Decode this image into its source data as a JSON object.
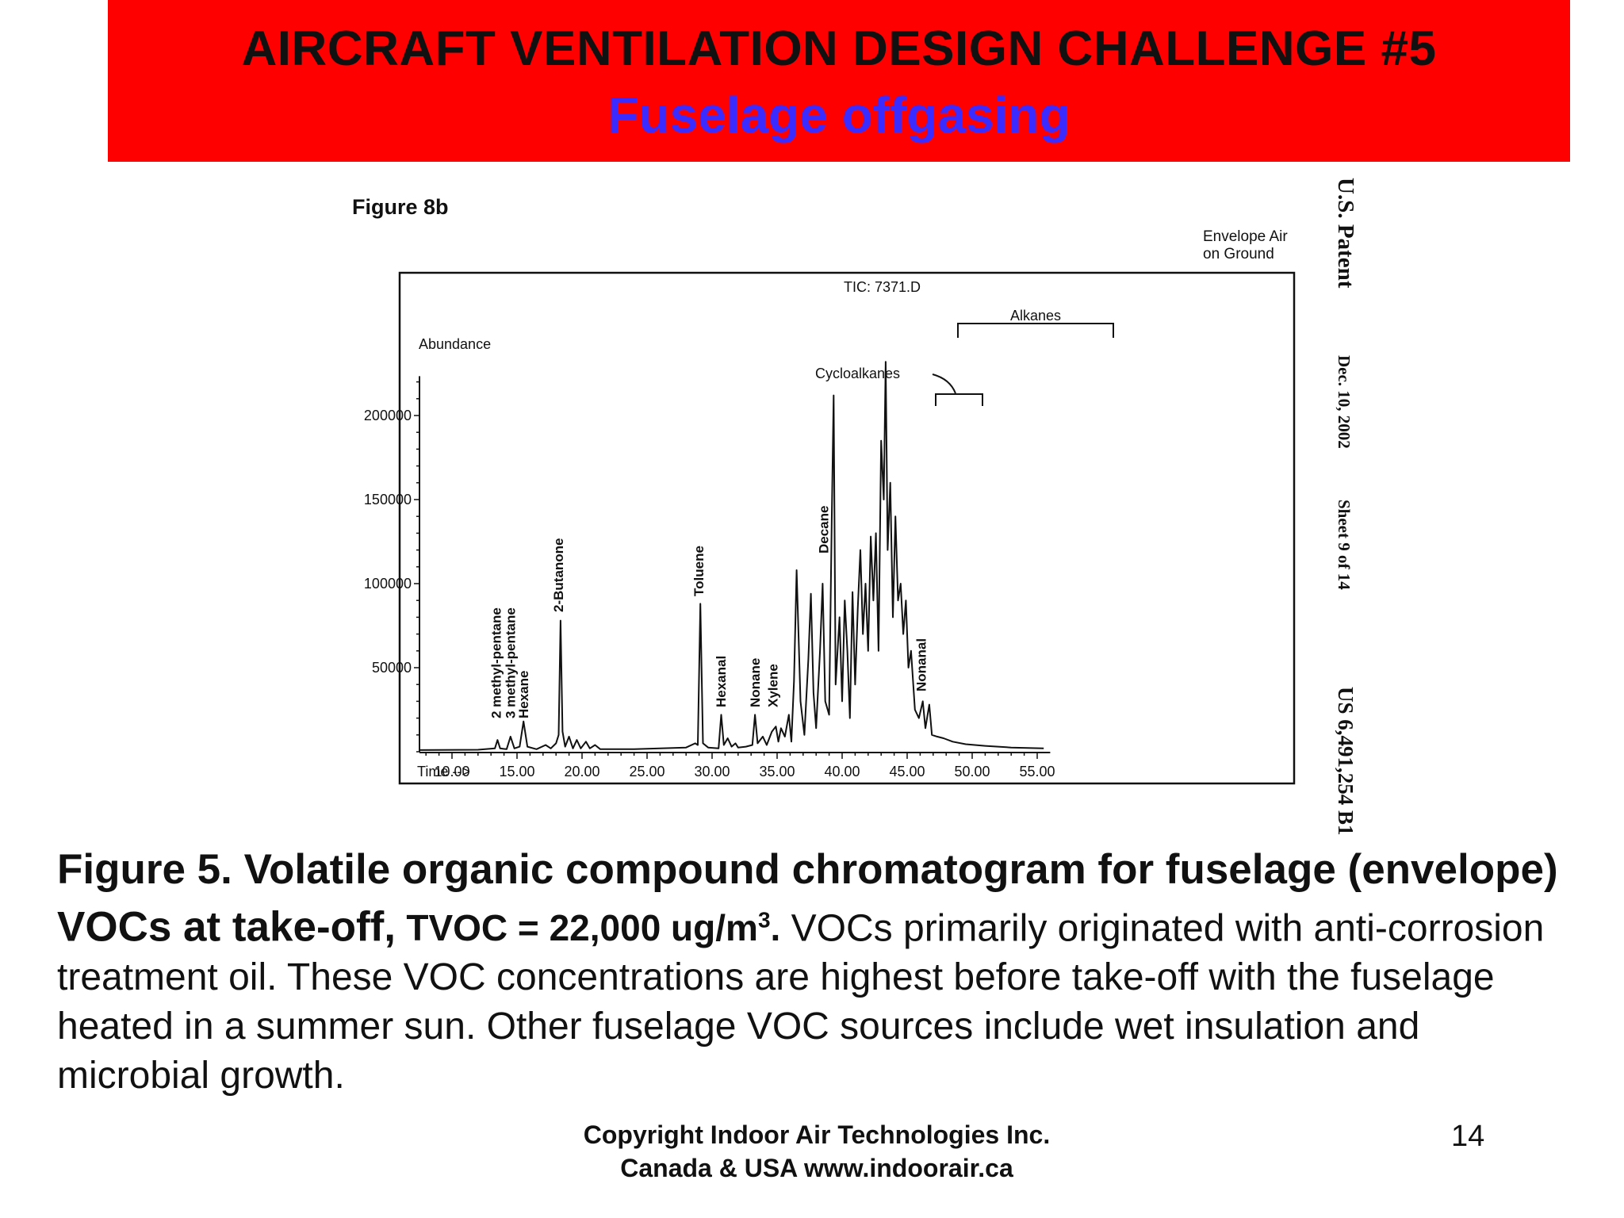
{
  "banner": {
    "title": "AIRCRAFT VENTILATION DESIGN CHALLENGE #5",
    "subtitle": "Fuselage offgasing",
    "bg_color": "#ff0000",
    "subtitle_color": "#3b2bff"
  },
  "figure": {
    "figure_label": "Figure 8b",
    "corner_note_line1": "Envelope Air",
    "corner_note_line2": "on Ground",
    "tic_label": "TIC: 7371.D",
    "y_axis_label": "Abundance",
    "x_axis_label": "Time -->",
    "bracket_alkanes": "Alkanes",
    "bracket_cycloalkanes": "Cycloalkanes",
    "patent_side": {
      "patent": "U.S. Patent",
      "date": "Dec. 10, 2002",
      "sheet": "Sheet 9 of 14",
      "number": "US 6,491,254 B1"
    }
  },
  "chart_data": {
    "type": "line",
    "title": "TIC: 7371.D",
    "xlabel": "Time -->",
    "ylabel": "Abundance",
    "xlim": [
      7.5,
      56.0
    ],
    "ylim": [
      0,
      230000
    ],
    "x_ticks": [
      10.0,
      15.0,
      20.0,
      25.0,
      30.0,
      35.0,
      40.0,
      45.0,
      50.0,
      55.0
    ],
    "x_tick_labels": [
      "10.00",
      "15.00",
      "20.00",
      "25.00",
      "30.00",
      "35.00",
      "40.00",
      "45.00",
      "50.00",
      "55.00"
    ],
    "y_ticks": [
      50000,
      100000,
      150000,
      200000
    ],
    "y_tick_labels": [
      "50000",
      "100000",
      "150000",
      "200000"
    ],
    "grid": false,
    "series": [
      {
        "points": [
          [
            7.5,
            1000
          ],
          [
            12.0,
            1200
          ],
          [
            13.3,
            2000
          ],
          [
            13.5,
            7000
          ],
          [
            13.7,
            2000
          ],
          [
            14.2,
            1500
          ],
          [
            14.5,
            9000
          ],
          [
            14.8,
            2000
          ],
          [
            15.2,
            3000
          ],
          [
            15.5,
            18000
          ],
          [
            15.8,
            3000
          ],
          [
            16.5,
            1500
          ],
          [
            17.2,
            4000
          ],
          [
            17.6,
            2000
          ],
          [
            18.0,
            5000
          ],
          [
            18.2,
            10000
          ],
          [
            18.35,
            78000
          ],
          [
            18.5,
            12000
          ],
          [
            18.7,
            3000
          ],
          [
            19.0,
            9000
          ],
          [
            19.3,
            2000
          ],
          [
            19.6,
            7000
          ],
          [
            19.9,
            2000
          ],
          [
            20.3,
            6000
          ],
          [
            20.6,
            2000
          ],
          [
            21.0,
            4000
          ],
          [
            21.4,
            1500
          ],
          [
            24.0,
            1500
          ],
          [
            26.0,
            2000
          ],
          [
            28.0,
            2500
          ],
          [
            28.7,
            5000
          ],
          [
            28.9,
            4000
          ],
          [
            29.1,
            88000
          ],
          [
            29.3,
            5000
          ],
          [
            29.7,
            2500
          ],
          [
            30.5,
            2000
          ],
          [
            30.7,
            22000
          ],
          [
            30.9,
            4000
          ],
          [
            31.2,
            8000
          ],
          [
            31.5,
            3000
          ],
          [
            31.8,
            5000
          ],
          [
            32.0,
            2500
          ],
          [
            32.6,
            3000
          ],
          [
            33.1,
            4000
          ],
          [
            33.3,
            22000
          ],
          [
            33.5,
            5000
          ],
          [
            33.9,
            9000
          ],
          [
            34.2,
            4000
          ],
          [
            34.6,
            12000
          ],
          [
            34.9,
            15000
          ],
          [
            35.1,
            6000
          ],
          [
            35.3,
            14000
          ],
          [
            35.6,
            9000
          ],
          [
            35.9,
            22000
          ],
          [
            36.1,
            6000
          ],
          [
            36.3,
            42000
          ],
          [
            36.5,
            108000
          ],
          [
            36.8,
            30000
          ],
          [
            37.1,
            10000
          ],
          [
            37.4,
            55000
          ],
          [
            37.6,
            94000
          ],
          [
            37.8,
            35000
          ],
          [
            38.0,
            14000
          ],
          [
            38.3,
            60000
          ],
          [
            38.5,
            100000
          ],
          [
            38.7,
            30000
          ],
          [
            39.0,
            22000
          ],
          [
            39.2,
            138000
          ],
          [
            39.35,
            212000
          ],
          [
            39.5,
            40000
          ],
          [
            39.8,
            80000
          ],
          [
            40.0,
            30000
          ],
          [
            40.2,
            90000
          ],
          [
            40.4,
            60000
          ],
          [
            40.6,
            20000
          ],
          [
            40.8,
            95000
          ],
          [
            41.0,
            40000
          ],
          [
            41.2,
            85000
          ],
          [
            41.4,
            120000
          ],
          [
            41.6,
            70000
          ],
          [
            41.8,
            100000
          ],
          [
            42.0,
            60000
          ],
          [
            42.2,
            128000
          ],
          [
            42.4,
            90000
          ],
          [
            42.6,
            130000
          ],
          [
            42.8,
            60000
          ],
          [
            43.0,
            185000
          ],
          [
            43.2,
            150000
          ],
          [
            43.35,
            232000
          ],
          [
            43.5,
            120000
          ],
          [
            43.7,
            160000
          ],
          [
            43.9,
            80000
          ],
          [
            44.1,
            140000
          ],
          [
            44.3,
            90000
          ],
          [
            44.5,
            100000
          ],
          [
            44.7,
            70000
          ],
          [
            44.9,
            90000
          ],
          [
            45.1,
            50000
          ],
          [
            45.3,
            60000
          ],
          [
            45.6,
            25000
          ],
          [
            45.9,
            20000
          ],
          [
            46.2,
            30000
          ],
          [
            46.4,
            14000
          ],
          [
            46.7,
            28000
          ],
          [
            46.9,
            10000
          ],
          [
            47.3,
            9000
          ],
          [
            47.8,
            8000
          ],
          [
            48.5,
            6000
          ],
          [
            49.5,
            4500
          ],
          [
            51.0,
            3500
          ],
          [
            53.0,
            2500
          ],
          [
            55.5,
            2000
          ]
        ]
      }
    ],
    "annotations": [
      {
        "text": "2 methyl-pentane",
        "x": 13.5
      },
      {
        "text": "3 methyl-pentane",
        "x": 14.6
      },
      {
        "text": "Hexane",
        "x": 15.6
      },
      {
        "text": "2-Butanone",
        "x": 18.3
      },
      {
        "text": "Toluene",
        "x": 29.1
      },
      {
        "text": "Hexanal",
        "x": 30.8
      },
      {
        "text": "Nonane",
        "x": 33.4
      },
      {
        "text": "Xylene",
        "x": 34.8
      },
      {
        "text": "Decane",
        "x": 38.7
      },
      {
        "text": "Nonanal",
        "x": 46.2
      }
    ]
  },
  "caption": {
    "bold_part1": "Figure 5. Volatile organic compound chromatogram for fuselage (envelope) VOCs at take-off,",
    "bold_part2": "TVOC = 22,000 ug/m",
    "bold_sup": "3",
    "bold_end": ".",
    "normal_part": "VOCs primarily originated with anti-corrosion treatment oil.  These VOC concentrations are highest before take-off with the fuselage heated in a summer sun.  Other fuselage VOC sources include wet insulation and microbial growth."
  },
  "footer": {
    "line1": "Copyright Indoor Air Technologies Inc.",
    "line2": "Canada & USA www.indoorair.ca",
    "page_number": "14"
  }
}
